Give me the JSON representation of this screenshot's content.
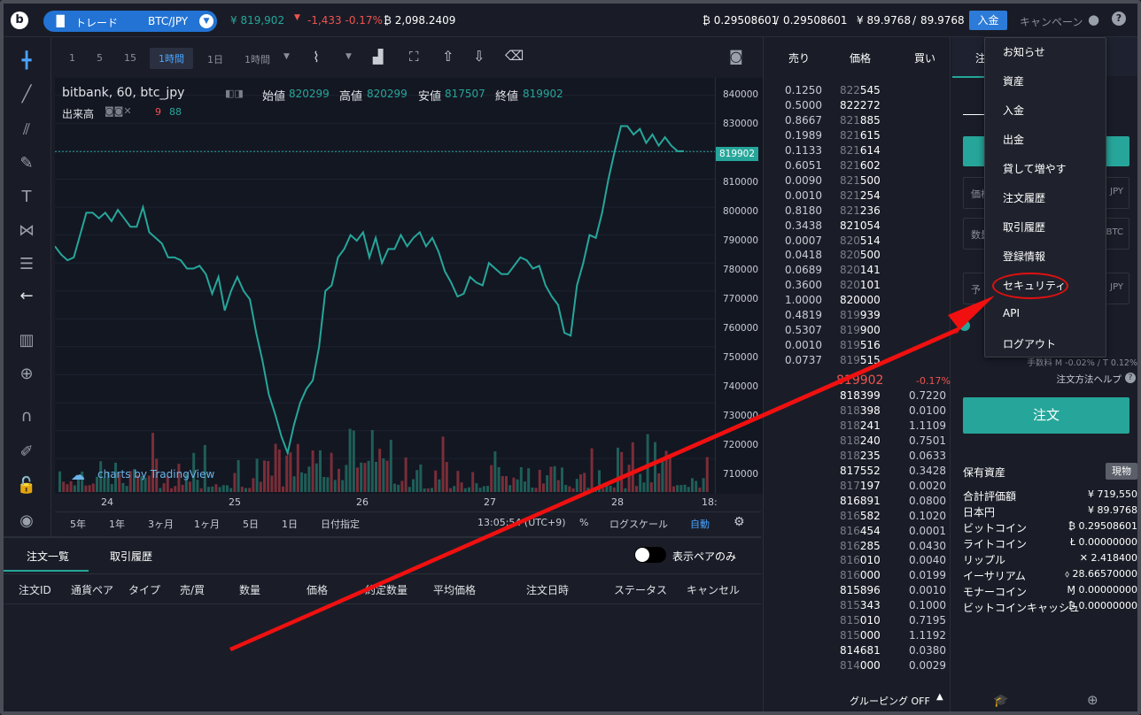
{
  "header": {
    "logo": "b",
    "mode_label": "トレード",
    "pair": "BTC/JPY",
    "last_price": "¥ 819,902",
    "change": "-1,433 -0.17%",
    "volume": "₿ 2,098.2409",
    "btc_balance": "₿ 0.29508601",
    "btc_total": "0.29508601",
    "jpy_balance": "¥ 89.9768",
    "jpy_total": "89.9768",
    "deposit": "入金",
    "campaign": "キャンペーン",
    "user_icon": "user-icon",
    "help_icon": "help-icon"
  },
  "chart_toolbar": {
    "intervals": [
      "1",
      "5",
      "15",
      "1時間",
      "1日",
      "1時間"
    ]
  },
  "chart": {
    "title": "bitbank, 60, btc_jpy",
    "open_label": "始値",
    "open": "820299",
    "high_label": "高値",
    "high": "820299",
    "low_label": "安値",
    "low": "817507",
    "close_label": "終値",
    "close": "819902",
    "volume_label": "出来高",
    "vol_red": "9",
    "vol_green": "88",
    "watermark": "charts by TradingView",
    "current_price_tag": "819902",
    "y_ticks": [
      "840000",
      "830000",
      "820000",
      "810000",
      "800000",
      "790000",
      "780000",
      "770000",
      "760000",
      "750000",
      "740000",
      "730000",
      "720000",
      "710000"
    ],
    "x_ticks": [
      "24",
      "25",
      "26",
      "27",
      "28",
      "18:"
    ],
    "ranges": [
      "5年",
      "1年",
      "3ヶ月",
      "1ヶ月",
      "5日",
      "1日",
      "日付指定"
    ],
    "time": "13:05:54 (UTC+9)",
    "percent": "%",
    "log": "ログスケール",
    "auto": "自動"
  },
  "chart_data": {
    "type": "line",
    "title": "bitbank, 60, btc_jpy",
    "ylim": [
      705000,
      845000
    ],
    "x_ticks": [
      "24",
      "25",
      "26",
      "27",
      "28"
    ],
    "values": [
      786000,
      783000,
      781000,
      782000,
      790000,
      798000,
      798000,
      796000,
      798000,
      795000,
      799000,
      796000,
      793000,
      793000,
      800000,
      791000,
      789000,
      787000,
      782000,
      782000,
      781000,
      778000,
      778000,
      779000,
      776000,
      769000,
      775000,
      763000,
      770000,
      775000,
      770000,
      767000,
      755000,
      745000,
      733000,
      726000,
      718000,
      712000,
      722000,
      730000,
      735000,
      738000,
      750000,
      770000,
      772000,
      782000,
      785000,
      790000,
      788000,
      791000,
      782000,
      789000,
      780000,
      785000,
      785000,
      790000,
      786000,
      789000,
      791000,
      786000,
      789000,
      784000,
      777000,
      773000,
      768000,
      769000,
      775000,
      773000,
      772000,
      780000,
      778000,
      776000,
      776000,
      779000,
      782000,
      781000,
      778000,
      779000,
      772000,
      768000,
      765000,
      755000,
      754000,
      772000,
      780000,
      790000,
      789000,
      798000,
      810000,
      820000,
      829000,
      829000,
      826000,
      828000,
      823000,
      826000,
      822000,
      825000,
      822000,
      820000,
      820000
    ]
  },
  "orders": {
    "tab1": "注文一覧",
    "tab2": "取引履歴",
    "toggle_label": "表示ペアのみ",
    "columns": [
      "注文ID",
      "通貨ペア",
      "タイプ",
      "売/買",
      "数量",
      "価格",
      "約定数量",
      "平均価格",
      "注文日時",
      "ステータス",
      "キャンセル"
    ]
  },
  "book": {
    "col_sell": "売り",
    "col_price": "価格",
    "col_buy": "買い",
    "asks": [
      [
        "0.1250",
        "822",
        "545"
      ],
      [
        "0.5000",
        "822272",
        ""
      ],
      [
        "0.8667",
        "821",
        "885"
      ],
      [
        "0.1989",
        "821",
        "615"
      ],
      [
        "0.1133",
        "821",
        "614"
      ],
      [
        "0.6051",
        "821",
        "602"
      ],
      [
        "0.0090",
        "821",
        "500"
      ],
      [
        "0.0010",
        "821",
        "254"
      ],
      [
        "0.8180",
        "821",
        "236"
      ],
      [
        "0.3438",
        "821054",
        ""
      ],
      [
        "0.0007",
        "820",
        "514"
      ],
      [
        "0.0418",
        "820",
        "500"
      ],
      [
        "0.0689",
        "820",
        "141"
      ],
      [
        "0.3600",
        "820",
        "101"
      ],
      [
        "1.0000",
        "820000",
        ""
      ],
      [
        "0.4819",
        "819",
        "939"
      ],
      [
        "0.5307",
        "819",
        "900"
      ],
      [
        "0.0010",
        "819",
        "516"
      ],
      [
        "0.0737",
        "819",
        "515"
      ]
    ],
    "mid_price": "819902",
    "mid_change": "-0.17%",
    "bids": [
      [
        "818399",
        "",
        "0.7220"
      ],
      [
        "818",
        "398",
        "0.0100"
      ],
      [
        "818",
        "241",
        "1.1109"
      ],
      [
        "818",
        "240",
        "0.7501"
      ],
      [
        "818",
        "235",
        "0.0633"
      ],
      [
        "817552",
        "",
        "0.3428"
      ],
      [
        "817",
        "197",
        "0.0020"
      ],
      [
        "816891",
        "",
        "0.0800"
      ],
      [
        "816",
        "582",
        "0.1020"
      ],
      [
        "816",
        "454",
        "0.0001"
      ],
      [
        "816",
        "285",
        "0.0430"
      ],
      [
        "816",
        "010",
        "0.0040"
      ],
      [
        "816",
        "000",
        "0.0199"
      ],
      [
        "815896",
        "",
        "0.0010"
      ],
      [
        "815",
        "343",
        "0.1000"
      ],
      [
        "815",
        "010",
        "0.7195"
      ],
      [
        "815",
        "000",
        "1.1192"
      ],
      [
        "814681",
        "",
        "0.0380"
      ],
      [
        "814",
        "000",
        "0.0029"
      ]
    ],
    "grouping": "グルーピング OFF"
  },
  "right": {
    "tab": "注",
    "price_field": "価格",
    "price_unit": "JPY",
    "amount_field": "数量",
    "amount_unit": "BTC",
    "estimate_field": "予",
    "estimate_unit": "JPY",
    "fee": "手数料 M -0.02% / T 0.12%",
    "order_method_help": "注文方法ヘルプ",
    "order_button": "注文",
    "assets_title": "保有資産",
    "assets_badge": "現物",
    "assets": [
      [
        "合計評価額",
        "¥ 719,550"
      ],
      [
        "日本円",
        "¥ 89.9768"
      ],
      [
        "ビットコイン",
        "₿ 0.29508601"
      ],
      [
        "ライトコイン",
        "Ł 0.00000000"
      ],
      [
        "リップル",
        "✕ 2.418400"
      ],
      [
        "イーサリアム",
        "⬨ 28.66570000"
      ],
      [
        "モナーコイン",
        "Ɱ 0.00000000"
      ],
      [
        "ビットコインキャッシュ",
        "₿ 0.00000000"
      ]
    ]
  },
  "menu": {
    "items": [
      "お知らせ",
      "資産",
      "入金",
      "出金",
      "貸して増やす",
      "注文履歴",
      "取引履歴",
      "登録情報",
      "セキュリティ",
      "API",
      "ログアウト"
    ]
  },
  "colors": {
    "accent": "#2273d4",
    "up": "#26a69a",
    "down": "#ef5350",
    "annotation": "#e01010"
  }
}
